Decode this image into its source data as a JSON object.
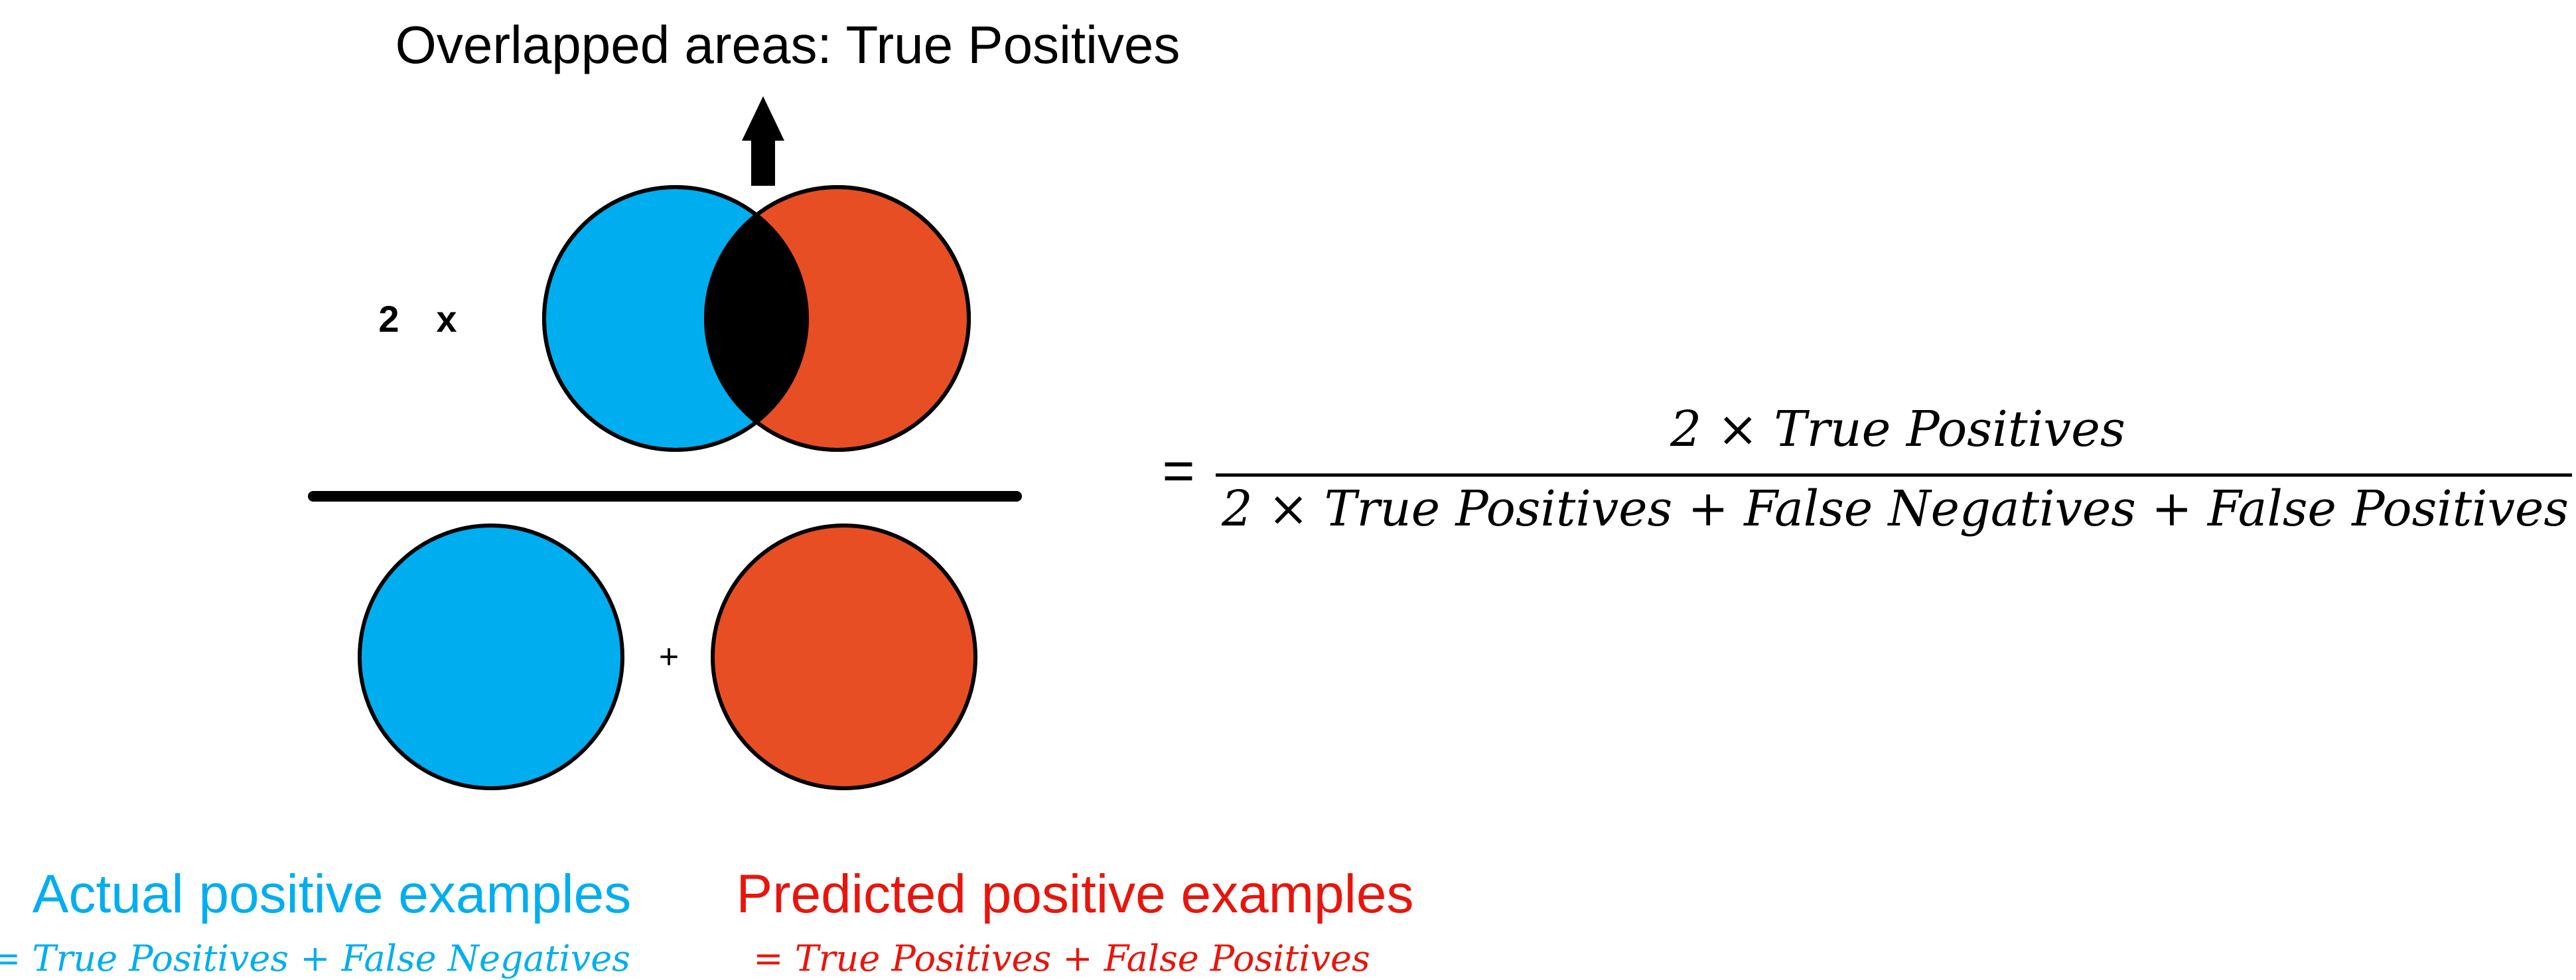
{
  "header": {
    "title": "Overlapped areas: True Positives"
  },
  "numerator": {
    "coefficient": "2",
    "times": "x"
  },
  "denominator": {
    "plus": "+"
  },
  "formula": {
    "equals": "=",
    "numerator": "2  × True Positives",
    "denominator": "2 × True Positives + False Negatives + False Positives"
  },
  "legend": {
    "actual": {
      "label": "Actual positive examples",
      "formula": "= True Positives + False Negatives"
    },
    "predicted": {
      "label": "Predicted positive examples",
      "formula": "= True Positives + False Positives"
    }
  },
  "colors": {
    "actual": "#00AEEF",
    "predicted": "#E84E24",
    "overlap": "#000000",
    "predicted_text": "#E8150C"
  }
}
